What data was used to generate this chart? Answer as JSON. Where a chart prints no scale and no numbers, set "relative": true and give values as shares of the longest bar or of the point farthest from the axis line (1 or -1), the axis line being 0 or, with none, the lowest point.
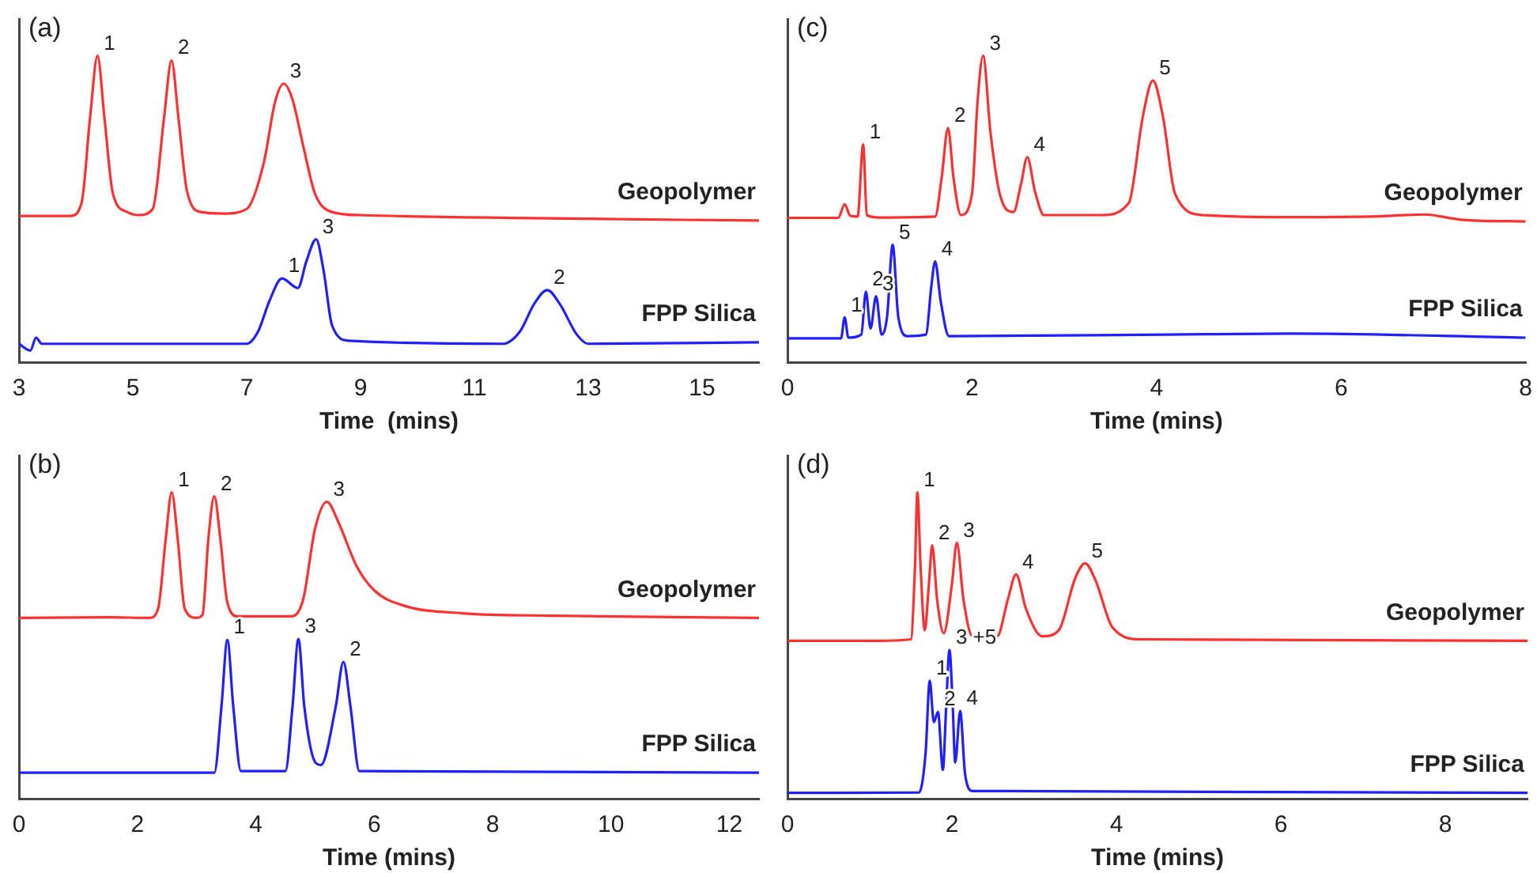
{
  "chart_data": [
    {
      "type": "line",
      "title": "(a)",
      "xlabel": "Time  (mins)",
      "relative": true,
      "xlim": [
        3,
        16
      ],
      "xticks": [
        3,
        5,
        7,
        9,
        11,
        13,
        15
      ],
      "series": [
        {
          "name": "Geopolymer",
          "color": "#ff3030",
          "x": [
            3,
            3.9,
            4.1,
            4.25,
            4.38,
            4.5,
            4.65,
            4.9,
            5.1,
            5.35,
            5.55,
            5.68,
            5.8,
            5.95,
            6.2,
            6.6,
            7.0,
            7.3,
            7.5,
            7.65,
            7.8,
            8.0,
            8.2,
            8.5,
            9,
            12,
            16
          ],
          "values": [
            0.477,
            0.477,
            0.52,
            0.8,
            1.0,
            0.8,
            0.55,
            0.49,
            0.48,
            0.5,
            0.8,
            0.985,
            0.8,
            0.56,
            0.49,
            0.485,
            0.5,
            0.65,
            0.85,
            0.909,
            0.86,
            0.7,
            0.55,
            0.49,
            0.48,
            0.47,
            0.462
          ]
        },
        {
          "name": "FPP Silica",
          "color": "#2020ff",
          "x": [
            3,
            3.2,
            3.3,
            3.4,
            7.0,
            7.2,
            7.4,
            7.62,
            7.9,
            8.05,
            8.22,
            8.35,
            8.5,
            8.8,
            11.5,
            11.8,
            12.05,
            12.28,
            12.5,
            12.8,
            13,
            16
          ],
          "values": [
            0.06,
            0.038,
            0.08,
            0.06,
            0.06,
            0.1,
            0.2,
            0.273,
            0.242,
            0.33,
            0.401,
            0.3,
            0.12,
            0.07,
            0.06,
            0.1,
            0.19,
            0.235,
            0.19,
            0.09,
            0.06,
            0.065
          ]
        }
      ],
      "annotations": [
        {
          "text": "1",
          "x": 4.38,
          "y": 1.0
        },
        {
          "text": "2",
          "x": 5.68,
          "y": 0.985
        },
        {
          "text": "3",
          "x": 7.65,
          "y": 0.909
        },
        {
          "text": "1",
          "x": 7.62,
          "y": 0.273
        },
        {
          "text": "3",
          "x": 8.22,
          "y": 0.401
        },
        {
          "text": "2",
          "x": 12.28,
          "y": 0.235
        }
      ]
    },
    {
      "type": "line",
      "title": "(c)",
      "xlabel": "Time (mins)",
      "relative": true,
      "xlim": [
        0,
        8
      ],
      "xticks": [
        0,
        2,
        4,
        6,
        8
      ],
      "series": [
        {
          "name": "Geopolymer",
          "color": "#ff3030",
          "x": [
            0,
            0.55,
            0.62,
            0.68,
            0.76,
            0.82,
            0.86,
            1.0,
            1.6,
            1.67,
            1.74,
            1.8,
            1.88,
            2.0,
            2.06,
            2.12,
            2.2,
            2.3,
            2.45,
            2.53,
            2.6,
            2.68,
            2.78,
            3.4,
            3.7,
            3.85,
            3.96,
            4.07,
            4.2,
            4.5,
            5.5,
            6.4,
            6.9,
            7.3,
            8
          ],
          "values": [
            0.471,
            0.471,
            0.515,
            0.478,
            0.475,
            0.71,
            0.48,
            0.472,
            0.475,
            0.6,
            0.764,
            0.6,
            0.48,
            0.55,
            0.85,
            1.0,
            0.75,
            0.55,
            0.49,
            0.58,
            0.669,
            0.56,
            0.48,
            0.48,
            0.52,
            0.8,
            0.919,
            0.8,
            0.55,
            0.48,
            0.473,
            0.476,
            0.482,
            0.465,
            0.459
          ]
        },
        {
          "name": "FPP Silica",
          "color": "#2020ff",
          "x": [
            0,
            0.58,
            0.62,
            0.66,
            0.8,
            0.85,
            0.9,
            0.96,
            1.02,
            1.08,
            1.14,
            1.2,
            1.3,
            1.5,
            1.56,
            1.6,
            1.66,
            1.75,
            4.1,
            5.5,
            8
          ],
          "values": [
            0.078,
            0.078,
            0.146,
            0.08,
            0.09,
            0.23,
            0.11,
            0.215,
            0.09,
            0.15,
            0.383,
            0.15,
            0.085,
            0.09,
            0.25,
            0.329,
            0.2,
            0.085,
            0.09,
            0.093,
            0.08
          ]
        }
      ],
      "annotations": [
        {
          "text": "1",
          "x": 0.82,
          "y": 0.71
        },
        {
          "text": "2",
          "x": 1.74,
          "y": 0.764
        },
        {
          "text": "3",
          "x": 2.12,
          "y": 1.0
        },
        {
          "text": "4",
          "x": 2.6,
          "y": 0.669
        },
        {
          "text": "5",
          "x": 3.96,
          "y": 0.919
        },
        {
          "text": "1",
          "x": 0.62,
          "y": 0.146
        },
        {
          "text": "2",
          "x": 0.85,
          "y": 0.23
        },
        {
          "text": "3",
          "x": 0.96,
          "y": 0.215
        },
        {
          "text": "5",
          "x": 1.14,
          "y": 0.383
        },
        {
          "text": "4",
          "x": 1.6,
          "y": 0.329
        }
      ]
    },
    {
      "type": "line",
      "title": "(b)",
      "xlabel": "Time (mins)",
      "relative": true,
      "xlim": [
        0,
        12.5
      ],
      "xticks": [
        0,
        2,
        4,
        6,
        8,
        10,
        12
      ],
      "series": [
        {
          "name": "Geopolymer",
          "color": "#ff3030",
          "x": [
            0,
            1.5,
            2.2,
            2.35,
            2.48,
            2.58,
            2.68,
            2.8,
            3.0,
            3.1,
            3.2,
            3.3,
            3.4,
            3.52,
            3.7,
            4.6,
            4.8,
            5.0,
            5.2,
            5.4,
            5.7,
            6.0,
            6.5,
            7.5,
            9,
            12.5
          ],
          "values": [
            0.59,
            0.592,
            0.59,
            0.62,
            0.85,
            1.0,
            0.85,
            0.62,
            0.59,
            0.6,
            0.85,
            0.987,
            0.85,
            0.64,
            0.595,
            0.595,
            0.65,
            0.88,
            0.969,
            0.9,
            0.76,
            0.68,
            0.63,
            0.605,
            0.597,
            0.59
          ]
        },
        {
          "name": "FPP Silica",
          "color": "#2020ff",
          "x": [
            0,
            3.3,
            3.42,
            3.52,
            3.62,
            3.75,
            4.5,
            4.62,
            4.72,
            4.82,
            5.0,
            5.1,
            5.35,
            5.48,
            5.6,
            5.75,
            12.5
          ],
          "values": [
            0.085,
            0.085,
            0.3,
            0.518,
            0.3,
            0.09,
            0.09,
            0.3,
            0.521,
            0.3,
            0.12,
            0.11,
            0.3,
            0.446,
            0.3,
            0.09,
            0.085
          ]
        }
      ],
      "annotations": [
        {
          "text": "1",
          "x": 2.58,
          "y": 1.0
        },
        {
          "text": "2",
          "x": 3.3,
          "y": 0.987
        },
        {
          "text": "3",
          "x": 5.2,
          "y": 0.969
        },
        {
          "text": "1",
          "x": 3.52,
          "y": 0.518
        },
        {
          "text": "3",
          "x": 4.72,
          "y": 0.521
        },
        {
          "text": "2",
          "x": 5.48,
          "y": 0.446
        }
      ]
    },
    {
      "type": "line",
      "title": "(d)",
      "xlabel": "Time (mins)",
      "relative": true,
      "xlim": [
        0,
        9
      ],
      "xticks": [
        0,
        2,
        4,
        6,
        8
      ],
      "series": [
        {
          "name": "Geopolymer",
          "color": "#ff3030",
          "x": [
            0,
            1.0,
            1.5,
            1.55,
            1.58,
            1.62,
            1.67,
            1.72,
            1.76,
            1.82,
            1.9,
            2.0,
            2.06,
            2.14,
            2.25,
            2.55,
            2.68,
            2.78,
            2.9,
            3.1,
            3.3,
            3.5,
            3.62,
            3.75,
            3.95,
            4.3,
            9
          ],
          "values": [
            0.515,
            0.515,
            0.52,
            0.75,
            1.0,
            0.75,
            0.55,
            0.7,
            0.827,
            0.65,
            0.54,
            0.7,
            0.835,
            0.65,
            0.53,
            0.53,
            0.65,
            0.732,
            0.62,
            0.53,
            0.55,
            0.72,
            0.768,
            0.71,
            0.56,
            0.52,
            0.515
          ]
        },
        {
          "name": "FPP Silica",
          "color": "#2020ff",
          "x": [
            0,
            1.6,
            1.68,
            1.73,
            1.78,
            1.83,
            1.89,
            1.93,
            1.97,
            2.01,
            2.04,
            2.1,
            2.16,
            2.25,
            9
          ],
          "values": [
            0.019,
            0.02,
            0.15,
            0.385,
            0.25,
            0.283,
            0.094,
            0.3,
            0.485,
            0.3,
            0.118,
            0.286,
            0.08,
            0.025,
            0.019
          ]
        }
      ],
      "annotations": [
        {
          "text": "1",
          "x": 1.58,
          "y": 1.0
        },
        {
          "text": "2",
          "x": 1.76,
          "y": 0.827
        },
        {
          "text": "3",
          "x": 2.06,
          "y": 0.835
        },
        {
          "text": "4",
          "x": 2.78,
          "y": 0.732
        },
        {
          "text": "5",
          "x": 3.62,
          "y": 0.768
        },
        {
          "text": "1",
          "x": 1.73,
          "y": 0.385
        },
        {
          "text": "2",
          "x": 1.83,
          "y": 0.283
        },
        {
          "text": "3 +5",
          "x": 1.97,
          "y": 0.485
        },
        {
          "text": "4",
          "x": 2.1,
          "y": 0.286
        }
      ]
    }
  ]
}
